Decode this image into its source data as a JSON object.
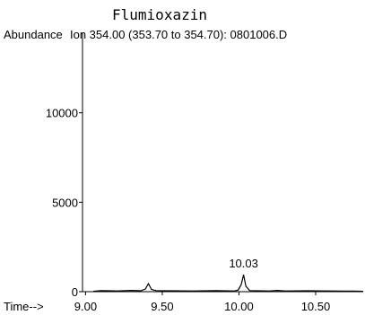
{
  "chart_data": {
    "type": "line",
    "title": "Flumioxazin",
    "ylabel": "Abundance",
    "trace_label": "Ion 354.00 (353.70 to 354.70): 0801006.D",
    "xlabel_prefix": "Time-->",
    "xlim": [
      8.98,
      10.81
    ],
    "ylim": [
      0,
      14500
    ],
    "x_ticks": [
      9.0,
      9.5,
      10.0,
      10.5
    ],
    "x_tick_labels": [
      "9.00",
      "9.50",
      "10.00",
      "10.50"
    ],
    "y_ticks": [
      0,
      5000,
      10000
    ],
    "y_tick_labels": [
      "0",
      "5000",
      "10000"
    ],
    "series": [
      {
        "x": [
          9.05,
          9.1,
          9.2,
          9.3,
          9.36,
          9.39,
          9.41,
          9.43,
          9.46,
          9.55,
          9.7,
          9.85,
          9.97,
          9.995,
          10.015,
          10.03,
          10.045,
          10.07,
          10.2,
          10.25,
          10.3,
          10.45,
          10.6,
          10.75,
          10.81
        ],
        "y": [
          20,
          60,
          40,
          70,
          50,
          150,
          450,
          120,
          60,
          50,
          40,
          60,
          40,
          90,
          400,
          950,
          300,
          60,
          40,
          70,
          40,
          50,
          40,
          30,
          20
        ]
      }
    ],
    "annotations": [
      {
        "text": "10.03",
        "x": 10.03,
        "y": 950
      }
    ],
    "grid": false
  }
}
